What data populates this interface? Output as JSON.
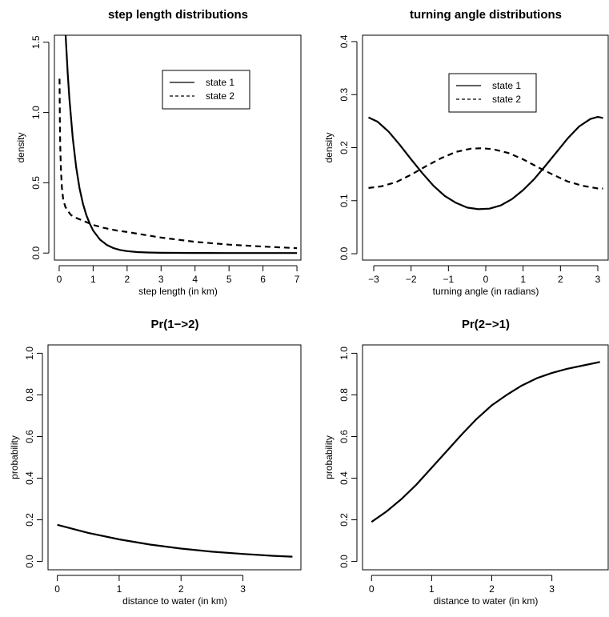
{
  "chart_data": [
    {
      "type": "line",
      "title": "step length distributions",
      "xlabel": "step length (in km)",
      "ylabel": "density",
      "xlim": [
        -0.14,
        7.14
      ],
      "ylim": [
        -0.05,
        1.55
      ],
      "xticks": [
        "0",
        "1",
        "2",
        "3",
        "4",
        "5",
        "6",
        "7"
      ],
      "yticks": [
        "0.0",
        "0.5",
        "1.0",
        "1.5"
      ],
      "legend": "top-right",
      "series": [
        {
          "name": "state 1",
          "style": "solid",
          "x": [
            0.19,
            0.25,
            0.3,
            0.4,
            0.5,
            0.6,
            0.7,
            0.8,
            0.9,
            1.0,
            1.2,
            1.4,
            1.6,
            1.8,
            2.0,
            2.3,
            2.6,
            3.0,
            3.5,
            4.0,
            5.0,
            6.0,
            7.0
          ],
          "y": [
            1.55,
            1.28,
            1.1,
            0.82,
            0.61,
            0.46,
            0.35,
            0.27,
            0.21,
            0.16,
            0.096,
            0.058,
            0.035,
            0.022,
            0.014,
            0.007,
            0.004,
            0.002,
            0.001,
            0.0005,
            0.0,
            0.0,
            0.0
          ]
        },
        {
          "name": "state 2",
          "style": "dashed",
          "x": [
            0.01,
            0.02,
            0.03,
            0.05,
            0.08,
            0.12,
            0.18,
            0.25,
            0.35,
            0.5,
            0.7,
            1.0,
            1.3,
            1.7,
            2.0,
            2.5,
            3.0,
            3.5,
            4.0,
            5.0,
            6.0,
            7.0
          ],
          "y": [
            1.24,
            0.95,
            0.78,
            0.6,
            0.47,
            0.38,
            0.33,
            0.3,
            0.27,
            0.25,
            0.23,
            0.2,
            0.18,
            0.16,
            0.15,
            0.13,
            0.11,
            0.095,
            0.08,
            0.06,
            0.046,
            0.035
          ]
        }
      ]
    },
    {
      "type": "line",
      "title": "turning angle distributions",
      "xlabel": "turning angle (in radians)",
      "ylabel": "density",
      "xlim": [
        -3.3,
        3.3
      ],
      "ylim": [
        -0.012,
        0.412
      ],
      "xticks": [
        "−3",
        "−2",
        "−1",
        "0",
        "1",
        "2",
        "3"
      ],
      "yticks": [
        "0.0",
        "0.1",
        "0.2",
        "0.3",
        "0.4"
      ],
      "legend": "top-center",
      "series": [
        {
          "name": "state 1",
          "style": "solid",
          "x": [
            -3.14,
            -2.9,
            -2.6,
            -2.3,
            -2.0,
            -1.7,
            -1.4,
            -1.1,
            -0.8,
            -0.5,
            -0.2,
            0.1,
            0.4,
            0.7,
            1.0,
            1.3,
            1.6,
            1.9,
            2.2,
            2.5,
            2.8,
            3.0,
            3.14
          ],
          "y": [
            0.257,
            0.249,
            0.23,
            0.205,
            0.178,
            0.152,
            0.128,
            0.109,
            0.096,
            0.087,
            0.084,
            0.085,
            0.091,
            0.103,
            0.12,
            0.141,
            0.166,
            0.192,
            0.218,
            0.24,
            0.254,
            0.258,
            0.256
          ]
        },
        {
          "name": "state 2",
          "style": "dashed",
          "x": [
            -3.14,
            -2.8,
            -2.4,
            -2.0,
            -1.6,
            -1.2,
            -0.8,
            -0.4,
            -0.1,
            0.2,
            0.6,
            1.0,
            1.4,
            1.8,
            2.2,
            2.6,
            3.0,
            3.14
          ],
          "y": [
            0.124,
            0.127,
            0.135,
            0.149,
            0.165,
            0.18,
            0.192,
            0.198,
            0.199,
            0.197,
            0.19,
            0.178,
            0.163,
            0.149,
            0.136,
            0.128,
            0.123,
            0.123
          ]
        }
      ]
    },
    {
      "type": "line",
      "title": "Pr(1−>2)",
      "xlabel": "distance to water (in km)",
      "ylabel": "probability",
      "xlim": [
        -0.15,
        3.95
      ],
      "ylim": [
        -0.04,
        1.04
      ],
      "xticks": [
        "0",
        "1",
        "2",
        "3"
      ],
      "yticks": [
        "0.0",
        "0.2",
        "0.4",
        "0.6",
        "0.8",
        "1.0"
      ],
      "series": [
        {
          "x": [
            0.0,
            0.5,
            1.0,
            1.5,
            2.0,
            2.5,
            3.0,
            3.5,
            3.8
          ],
          "y": [
            0.176,
            0.137,
            0.106,
            0.081,
            0.062,
            0.047,
            0.036,
            0.027,
            0.023
          ]
        }
      ]
    },
    {
      "type": "line",
      "title": "Pr(2−>1)",
      "xlabel": "distance to water (in km)",
      "ylabel": "probability",
      "xlim": [
        -0.15,
        3.95
      ],
      "ylim": [
        -0.04,
        1.04
      ],
      "xticks": [
        "0",
        "1",
        "2",
        "3"
      ],
      "yticks": [
        "0.0",
        "0.2",
        "0.4",
        "0.6",
        "0.8",
        "1.0"
      ],
      "series": [
        {
          "x": [
            0.0,
            0.25,
            0.5,
            0.75,
            1.0,
            1.25,
            1.5,
            1.75,
            2.0,
            2.25,
            2.5,
            2.75,
            3.0,
            3.25,
            3.5,
            3.8
          ],
          "y": [
            0.19,
            0.24,
            0.3,
            0.37,
            0.45,
            0.53,
            0.61,
            0.685,
            0.75,
            0.8,
            0.845,
            0.88,
            0.905,
            0.925,
            0.94,
            0.958
          ]
        }
      ]
    }
  ]
}
